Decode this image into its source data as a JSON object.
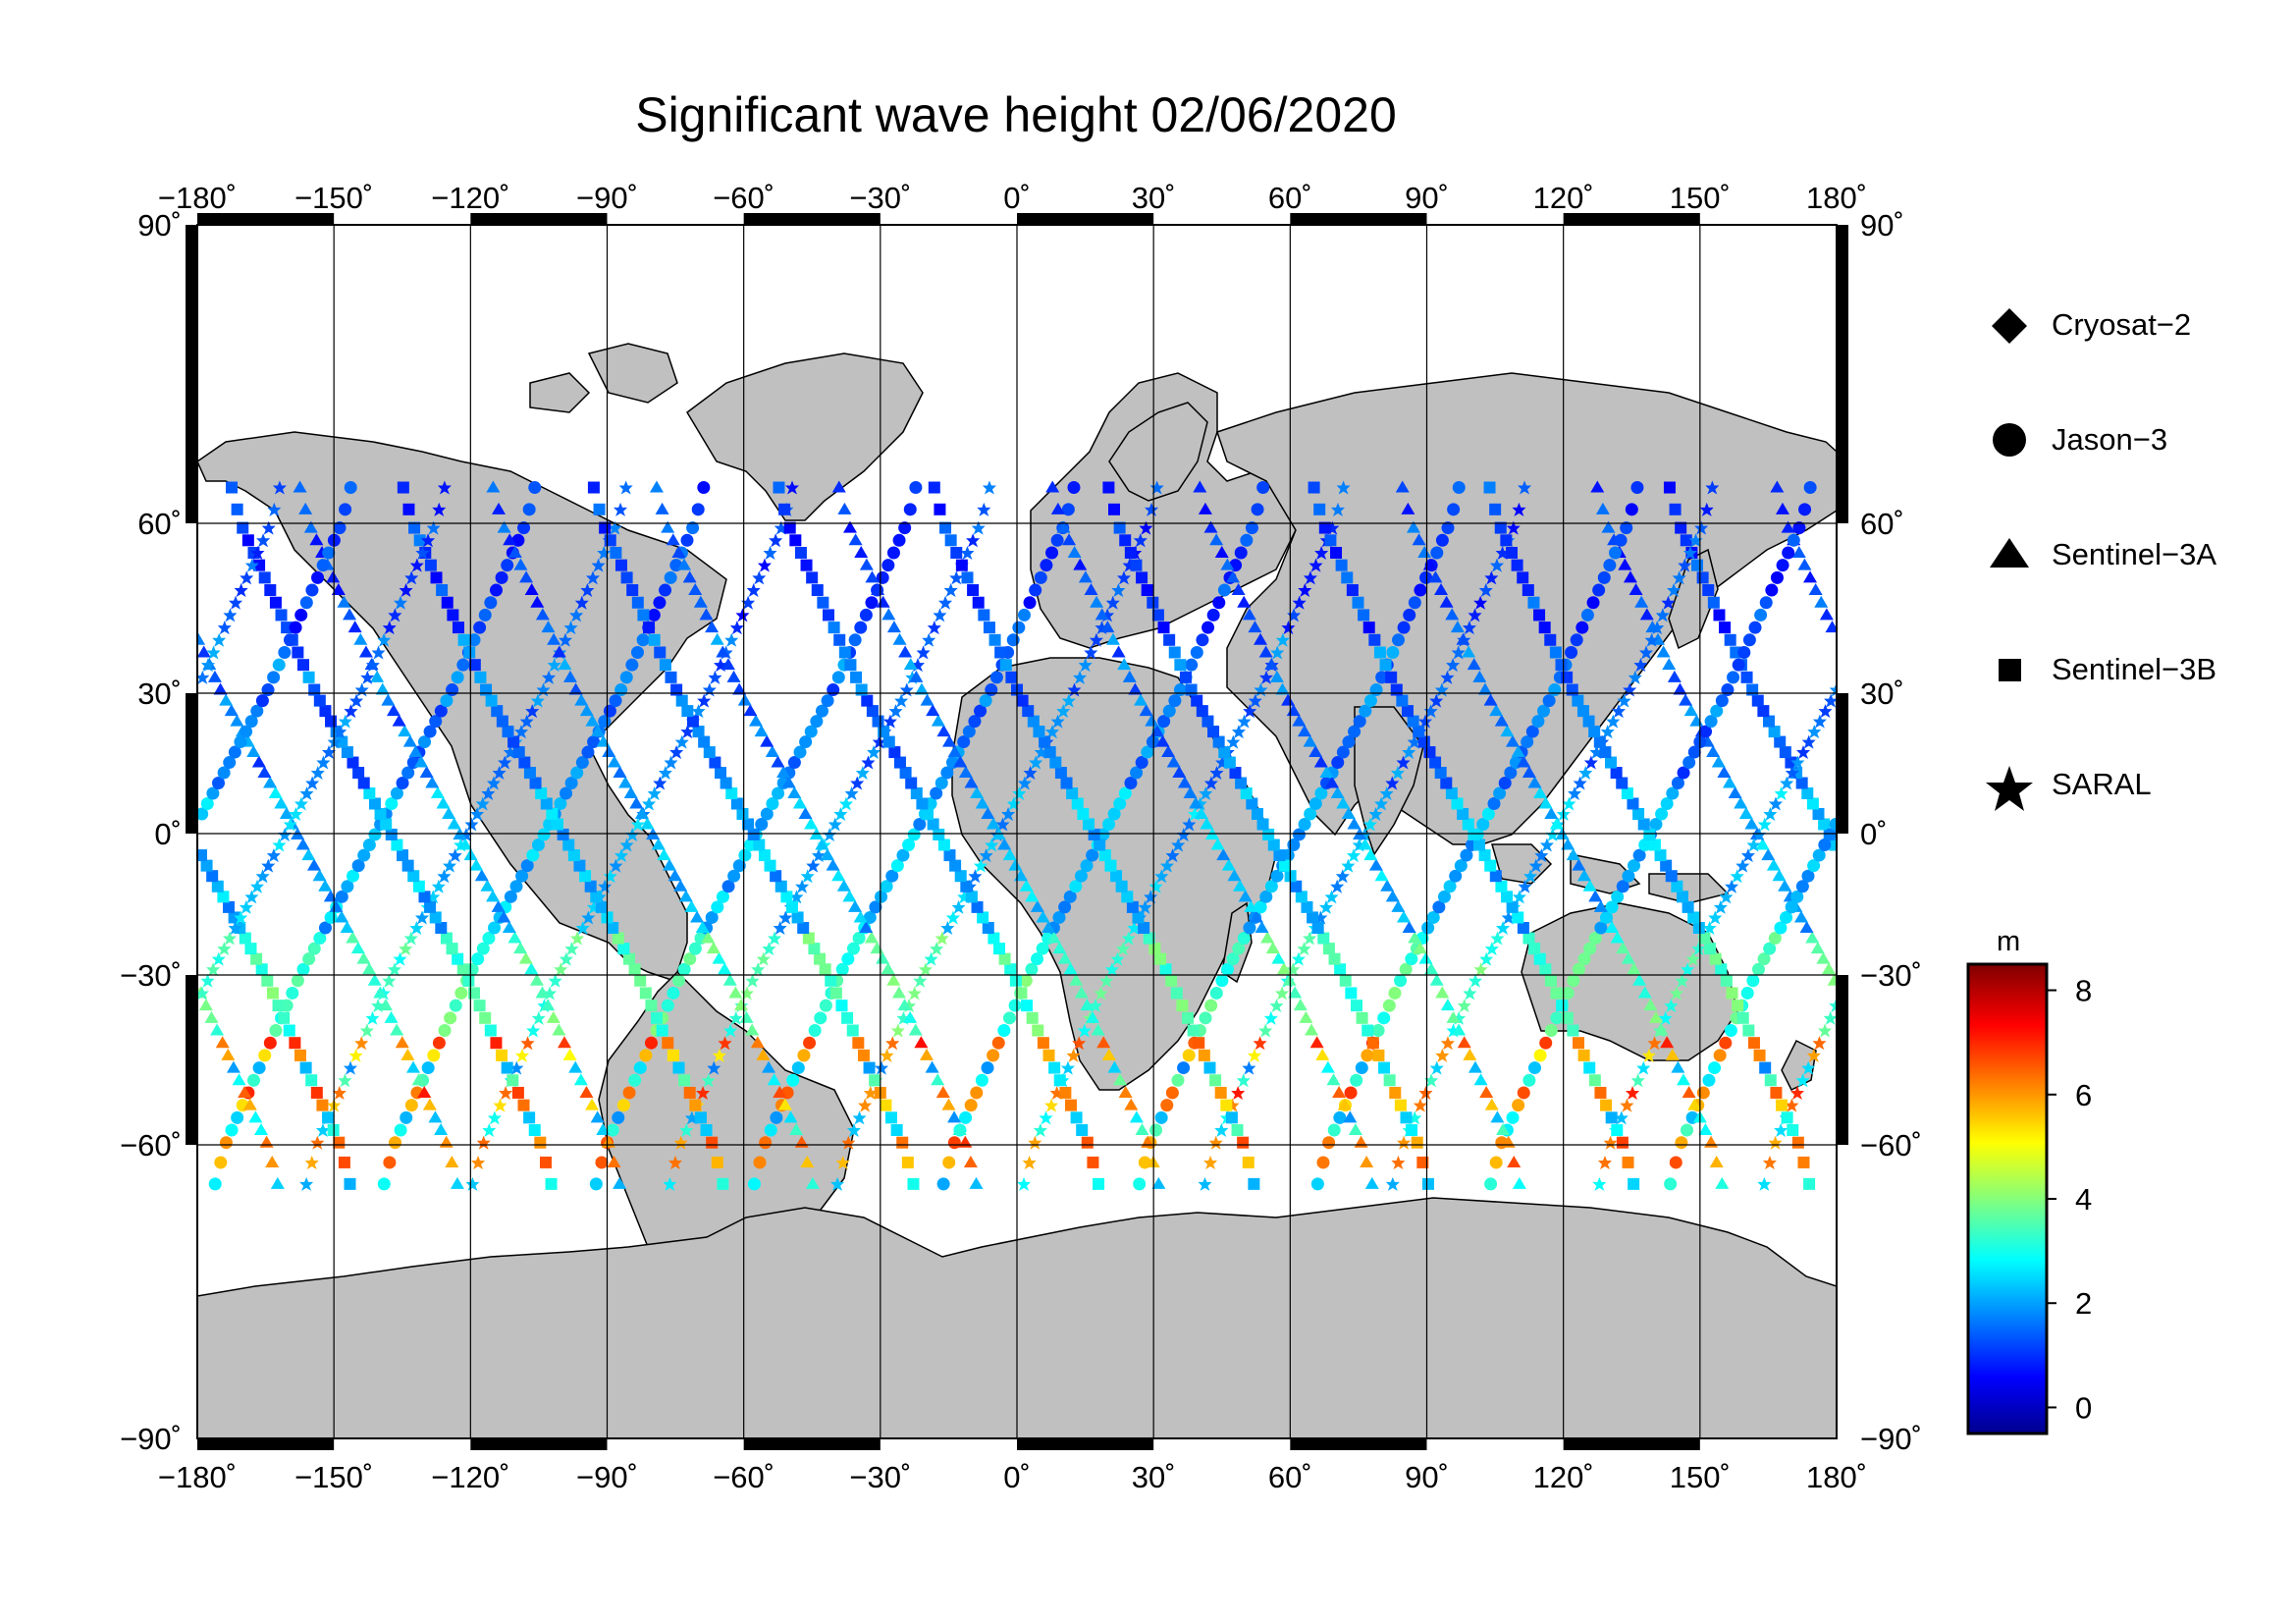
{
  "title": "Significant wave height 02/06/2020",
  "axes": {
    "lon_ticks": [
      "−180˚",
      "−150˚",
      "−120˚",
      "−90˚",
      "−60˚",
      "−30˚",
      "0˚",
      "30˚",
      "60˚",
      "90˚",
      "120˚",
      "150˚",
      "180˚"
    ],
    "lat_ticks_left": [
      "90˚",
      "60˚",
      "30˚",
      "0˚",
      "−30˚",
      "−60˚",
      "−90˚"
    ],
    "lat_ticks_right": [
      "90˚",
      "60˚",
      "30˚",
      "0˚",
      "−30˚",
      "−60˚",
      "−90˚"
    ]
  },
  "legend": {
    "items": [
      {
        "name": "Cryosat−2",
        "symbol": "diamond-icon"
      },
      {
        "name": "Jason−3",
        "symbol": "circle-icon"
      },
      {
        "name": "Sentinel−3A",
        "symbol": "triangle-icon"
      },
      {
        "name": "Sentinel−3B",
        "symbol": "square-icon"
      },
      {
        "name": "SARAL",
        "symbol": "star-icon"
      }
    ]
  },
  "colorbar": {
    "unit": "m",
    "ticks": [
      "8",
      "6",
      "4",
      "2",
      "0"
    ],
    "range": [
      -0.5,
      8.5
    ],
    "colormap": [
      "#00008f",
      "#0000ff",
      "#00ffff",
      "#ffff00",
      "#ff0000",
      "#800000"
    ]
  },
  "colors": {
    "land": "#c0c0c0",
    "ocean": "#ffffff",
    "frame": "#000000"
  }
}
